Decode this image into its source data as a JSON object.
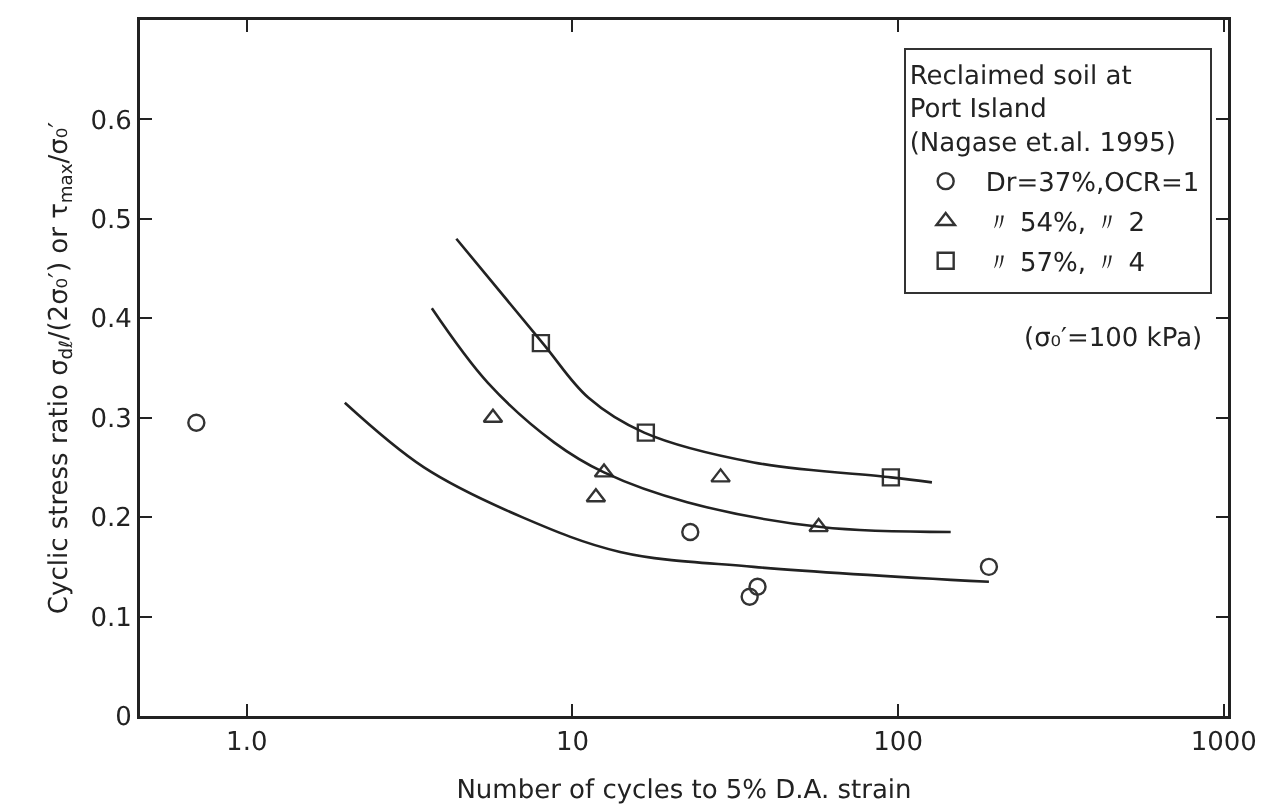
{
  "chart_data": {
    "type": "scatter",
    "xlabel": "Number of cycles to 5% D.A. strain",
    "ylabel": "Cyclic stress ratio σ$_{dℓ}$/(2σ₀′) or τ$_{max}$/σ₀′",
    "legend_title": "Reclaimed soil at\nPort Island\n(Nagase et.al. 1995)",
    "annotations": [
      "(σ₀′=100 kPa)"
    ],
    "log": "x",
    "xlim": [
      0.47,
      1030
    ],
    "xticks": [
      {
        "value": 1,
        "label": "1.0"
      },
      10,
      100,
      1000
    ],
    "ylim": [
      0,
      0.7
    ],
    "yticks": [
      0,
      0.1,
      0.2,
      0.3,
      0.4,
      0.5,
      0.6
    ],
    "grid": false,
    "legend": "top right",
    "series": [
      {
        "name": "Dr=37%,OCR=1",
        "color": "#333333",
        "marker": "circle",
        "x": [
          0.7,
          23,
          35,
          37,
          190
        ],
        "values": [
          0.295,
          0.185,
          0.12,
          0.13,
          0.15
        ]
      },
      {
        "name": "〃 54%, 〃 2",
        "color": "#333333",
        "marker": "triangle",
        "x": [
          5.7,
          11.8,
          12.5,
          28.5,
          57
        ],
        "values": [
          0.3,
          0.22,
          0.245,
          0.24,
          0.19
        ]
      },
      {
        "name": "〃 57%, 〃 4",
        "color": "#333333",
        "marker": "square",
        "x": [
          8,
          16.8,
          95
        ],
        "values": [
          0.375,
          0.285,
          0.24
        ]
      },
      {
        "type": "line",
        "color": "#222222",
        "marker": "none",
        "x": [
          2,
          3.5,
          7,
          14,
          36,
          190
        ],
        "values": [
          0.315,
          0.25,
          0.2,
          0.165,
          0.15,
          0.135
        ]
      },
      {
        "type": "line",
        "color": "#222222",
        "marker": "none",
        "x": [
          3.7,
          5.5,
          8.8,
          12.5,
          22.5,
          58,
          145
        ],
        "values": [
          0.41,
          0.335,
          0.275,
          0.245,
          0.215,
          0.19,
          0.185
        ]
      },
      {
        "type": "line",
        "color": "#222222",
        "marker": "none",
        "x": [
          4.4,
          8.1,
          11.2,
          16.6,
          36,
          95,
          127
        ],
        "values": [
          0.48,
          0.375,
          0.32,
          0.285,
          0.255,
          0.24,
          0.235
        ]
      }
    ]
  }
}
